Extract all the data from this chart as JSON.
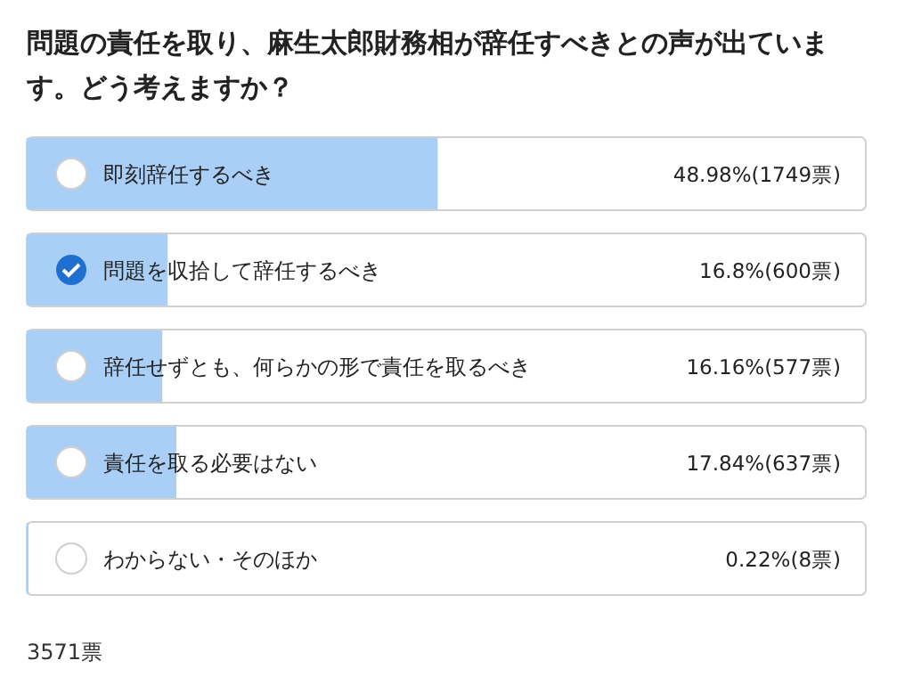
{
  "chart_data": {
    "type": "bar",
    "orientation": "horizontal",
    "title": "問題の責任を取り、麻生太郎財務相が辞任すべきとの声が出ています。どう考えますか？",
    "categories": [
      "即刻辞任するべき",
      "問題を収拾して辞任するべき",
      "辞任せずとも、何らかの形で責任を取るべき",
      "責任を取る必要はない",
      "わからない・そのほか"
    ],
    "values": [
      48.98,
      16.8,
      16.16,
      17.84,
      0.22
    ],
    "value_labels": [
      "48.98%(1749票)",
      "16.8%(600票)",
      "16.16%(577票)",
      "17.84%(637票)",
      "0.22%(8票)"
    ],
    "color": "#a9cff6",
    "xlim": [
      0,
      100
    ],
    "annotations": [
      "3571票"
    ]
  }
}
